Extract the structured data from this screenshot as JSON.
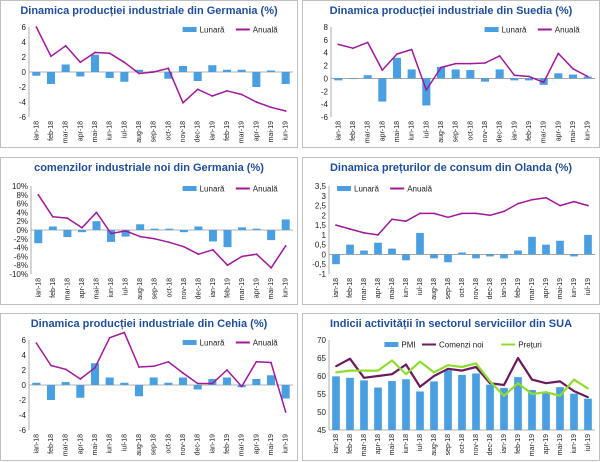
{
  "chart_data": [
    {
      "type": "bar+line",
      "title": "Dinamica producției industriale din Germania (%)",
      "categories": [
        "ian-18",
        "feb-18",
        "mar-18",
        "apr-18",
        "mai-18",
        "iun-18",
        "iul-18",
        "aug-18",
        "sep-18",
        "oct-18",
        "nov-18",
        "dec-18",
        "ian-19",
        "feb-19",
        "mar-19",
        "apr-19",
        "mai-19",
        "iun-19"
      ],
      "series": [
        {
          "name": "Lunară",
          "kind": "bar",
          "color": "#4a9fe0",
          "values": [
            -0.5,
            -1.6,
            1.0,
            -0.6,
            2.3,
            -0.8,
            -1.3,
            0.3,
            0.1,
            -0.9,
            0.8,
            -1.2,
            0.9,
            0.3,
            0.3,
            -2.0,
            0.2,
            -1.6
          ]
        },
        {
          "name": "Anuală",
          "kind": "line",
          "color": "#a0189a",
          "values": [
            6.0,
            2.1,
            3.5,
            1.3,
            2.6,
            2.5,
            1.3,
            -0.2,
            0.0,
            0.5,
            -4.1,
            -2.3,
            -3.2,
            -2.5,
            -3.0,
            -4.0,
            -4.7,
            -5.2
          ]
        }
      ],
      "yticks": [
        6,
        4,
        2,
        0,
        -2,
        -4,
        -6
      ],
      "ylim": [
        -6,
        6
      ],
      "ytick_format": "int",
      "legend": "top-right"
    },
    {
      "type": "bar+line",
      "title": "Dinamica producției industriale din Suedia (%)",
      "categories": [
        "ian-18",
        "feb-18",
        "mar-18",
        "apr-18",
        "mai-18",
        "iun-18",
        "iul-18",
        "aug-18",
        "sep-18",
        "oct-18",
        "nov-18",
        "dec-18",
        "ian-19",
        "feb-19",
        "mar-19",
        "apr-19",
        "mai-19",
        "iun-19"
      ],
      "series": [
        {
          "name": "Lunară",
          "kind": "bar",
          "color": "#4a9fe0",
          "values": [
            -0.3,
            -0.1,
            0.5,
            -3.6,
            3.2,
            1.4,
            -4.2,
            1.8,
            1.4,
            1.3,
            -0.5,
            1.4,
            -0.3,
            -0.3,
            -1.0,
            0.8,
            0.6,
            0.3
          ]
        },
        {
          "name": "Anuală",
          "kind": "line",
          "color": "#a0189a",
          "values": [
            5.3,
            4.7,
            5.6,
            1.3,
            3.8,
            4.5,
            -1.8,
            1.7,
            2.3,
            2.3,
            2.4,
            3.5,
            0.5,
            0.3,
            -0.6,
            3.9,
            1.5,
            0.3
          ]
        }
      ],
      "yticks": [
        8,
        6,
        4,
        2,
        0,
        -2,
        -4,
        -6
      ],
      "ylim": [
        -6,
        8
      ],
      "ytick_format": "int",
      "legend": "top-right"
    },
    {
      "type": "bar+line",
      "title": "comenzilor industriale noi din Germania (%)",
      "categories": [
        "ian-18",
        "feb-18",
        "mar-18",
        "apr-18",
        "mai-18",
        "iun-18",
        "iul-18",
        "aug-18",
        "sep-18",
        "oct-18",
        "nov-18",
        "dec-18",
        "ian-19",
        "feb-19",
        "mar-19",
        "apr-19",
        "mai-19",
        "iun-19"
      ],
      "series": [
        {
          "name": "Lunară",
          "kind": "bar",
          "color": "#4a9fe0",
          "values": [
            -3.0,
            0.8,
            -1.6,
            -0.5,
            2.0,
            -2.7,
            -1.5,
            1.3,
            0.3,
            0.3,
            -0.5,
            0.8,
            -2.6,
            -3.9,
            0.6,
            0.3,
            -2.3,
            2.4
          ]
        },
        {
          "name": "Anuală",
          "kind": "line",
          "color": "#a0189a",
          "values": [
            8.0,
            3.0,
            2.7,
            0.5,
            4.0,
            -0.8,
            -0.2,
            -1.5,
            -2.0,
            -2.8,
            -3.8,
            -5.5,
            -4.5,
            -8.0,
            -6.0,
            -5.5,
            -8.6,
            -3.6
          ]
        }
      ],
      "yticks": [
        10,
        8,
        6,
        4,
        2,
        0,
        -2,
        -4,
        -6,
        -8,
        -10
      ],
      "ylim": [
        -10,
        10
      ],
      "ytick_format": "pct",
      "legend": "top-right"
    },
    {
      "type": "bar+line",
      "title": "Dinamica prețurilor de consum din Olanda (%)",
      "categories": [
        "ian-18",
        "feb-18",
        "mar-18",
        "apr-18",
        "mai-18",
        "iun-18",
        "iul-18",
        "aug-18",
        "sep-18",
        "oct-18",
        "nov-18",
        "dec-18",
        "ian-19",
        "feb-19",
        "mar-19",
        "apr-19",
        "mai-19",
        "iun-19",
        "iul-19"
      ],
      "series": [
        {
          "name": "Lunară",
          "kind": "bar",
          "color": "#4a9fe0",
          "values": [
            -0.5,
            0.5,
            0.2,
            0.6,
            0.3,
            -0.3,
            1.1,
            -0.2,
            -0.4,
            0.1,
            -0.2,
            -0.1,
            -0.2,
            0.2,
            0.9,
            0.5,
            0.7,
            -0.1,
            1.0
          ]
        },
        {
          "name": "Anuală",
          "kind": "line",
          "color": "#a0189a",
          "values": [
            1.5,
            1.3,
            1.1,
            1.0,
            1.8,
            1.7,
            2.1,
            2.1,
            1.9,
            2.1,
            2.1,
            2.0,
            2.2,
            2.6,
            2.8,
            2.9,
            2.5,
            2.7,
            2.5
          ]
        }
      ],
      "yticks": [
        3.5,
        3,
        2.5,
        2,
        1.5,
        1,
        0.5,
        0,
        -0.5,
        -1
      ],
      "ylim": [
        -1,
        3.5
      ],
      "ytick_format": "num",
      "legend": "top-left"
    },
    {
      "type": "bar+line",
      "title": "Dinamica producției industriale din Cehia (%)",
      "categories": [
        "ian-18",
        "feb-18",
        "mar-18",
        "apr-18",
        "mai-18",
        "iun-18",
        "iul-18",
        "aug-18",
        "sep-18",
        "oct-18",
        "nov-18",
        "dec-18",
        "ian-19",
        "feb-19",
        "mar-19",
        "apr-19",
        "mai-19",
        "iun-19"
      ],
      "series": [
        {
          "name": "Lunară",
          "kind": "bar",
          "color": "#4a9fe0",
          "values": [
            0.3,
            -2.0,
            0.4,
            -1.7,
            2.9,
            1.0,
            0.3,
            -1.5,
            1.0,
            0.3,
            1.0,
            -0.6,
            0.8,
            1.0,
            -0.3,
            0.8,
            1.3,
            -1.8
          ]
        },
        {
          "name": "Anuală",
          "kind": "line",
          "color": "#a0189a",
          "values": [
            5.6,
            2.6,
            2.1,
            0.8,
            2.3,
            6.3,
            7.0,
            2.4,
            2.5,
            3.1,
            1.6,
            0.2,
            0.2,
            2.0,
            -0.2,
            3.1,
            3.0,
            -3.6
          ]
        }
      ],
      "yticks": [
        6,
        4,
        2,
        0,
        -2,
        -4,
        -6
      ],
      "ylim": [
        -6,
        6
      ],
      "ytick_format": "int",
      "legend": "top-right"
    },
    {
      "type": "bar+line",
      "title": "Indicii activității în sectorul serviciilor din SUA",
      "categories": [
        "ian-18",
        "feb-18",
        "mar-18",
        "apr-18",
        "mai-18",
        "iun-18",
        "iul-18",
        "aug-18",
        "sep-18",
        "oct-18",
        "nov-18",
        "dec-18",
        "ian-19",
        "feb-19",
        "mar-19",
        "apr-19",
        "mai-19",
        "iun-19",
        "iul-19"
      ],
      "series": [
        {
          "name": "PMI",
          "kind": "bar",
          "color": "#4a9fe0",
          "values": [
            59.9,
            59.5,
            58.8,
            56.8,
            58.6,
            59.1,
            55.7,
            58.5,
            61.6,
            60.3,
            60.7,
            57.6,
            56.7,
            59.7,
            56.1,
            55.5,
            56.9,
            55.1,
            53.7
          ]
        },
        {
          "name": "Comenzi noi",
          "kind": "line",
          "color": "#6b1a5e",
          "values": [
            62.7,
            64.8,
            59.5,
            60.0,
            60.5,
            63.2,
            57.0,
            60.0,
            62.0,
            61.5,
            62.5,
            58.0,
            57.5,
            65.0,
            59.0,
            58.0,
            58.5,
            55.8,
            54.1
          ]
        },
        {
          "name": "Prețuri",
          "kind": "line",
          "color": "#90dc2e",
          "values": [
            61.0,
            61.5,
            61.5,
            61.5,
            64.3,
            60.5,
            64.0,
            61.0,
            63.0,
            62.5,
            63.5,
            58.5,
            54.5,
            58.0,
            55.0,
            55.5,
            54.5,
            59.0,
            56.5
          ]
        }
      ],
      "yticks": [
        70,
        65,
        60,
        55,
        50,
        45
      ],
      "ylim": [
        45,
        70
      ],
      "ytick_format": "int",
      "legend": "top-center",
      "bar_base": 45
    }
  ]
}
